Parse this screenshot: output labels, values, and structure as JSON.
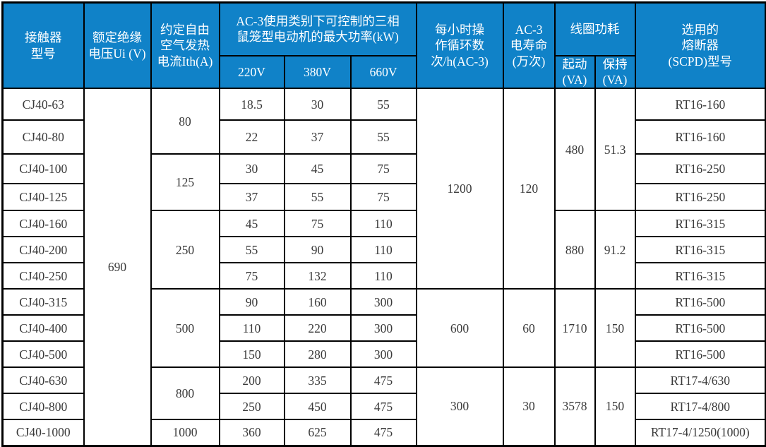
{
  "colors": {
    "header_bg": "#1082c8",
    "header_text": "#ffffff",
    "body_bg": "#ffffff",
    "body_text": "#3a3a3a",
    "border": "#000000"
  },
  "table": {
    "title_semantic": "CJ40 contactor specification table",
    "header_rows": [
      [
        {
          "t": "接触器\n型号",
          "rs": 2
        },
        {
          "t": "额定绝缘\n电压Ui (V)",
          "rs": 2
        },
        {
          "t": "约定自由\n空气发热\n电流Ith(A)",
          "rs": 2
        },
        {
          "t": "AC-3使用类别下可控制的三相\n鼠笼型电动机的最大功率(kW)",
          "cs": 3
        },
        {
          "t": "每小时操\n作循环数\n次/h(AC-3)",
          "rs": 2
        },
        {
          "t": "AC-3\n电寿命\n(万次)",
          "rs": 2
        },
        {
          "t": "线圈功耗",
          "cs": 2
        },
        {
          "t": "选用的\n熔断器\n(SCPD)型号",
          "rs": 2
        }
      ],
      [
        {
          "t": "220V"
        },
        {
          "t": "380V"
        },
        {
          "t": "660V"
        },
        {
          "t": "起动\n(VA)"
        },
        {
          "t": "保持\n(VA)"
        }
      ]
    ],
    "body_rows": [
      [
        {
          "t": "CJ40-63"
        },
        {
          "t": "690",
          "rs": 13
        },
        {
          "t": "80",
          "rs": 2
        },
        {
          "t": "18.5"
        },
        {
          "t": "30"
        },
        {
          "t": "55"
        },
        {
          "t": "1200",
          "rs": 7
        },
        {
          "t": "120",
          "rs": 7
        },
        {
          "t": "480",
          "rs": 4
        },
        {
          "t": "51.3",
          "rs": 4
        },
        {
          "t": "RT16-160"
        }
      ],
      [
        {
          "t": "CJ40-80"
        },
        {
          "t": "22"
        },
        {
          "t": "37"
        },
        {
          "t": "55"
        },
        {
          "t": "RT16-160"
        }
      ],
      [
        {
          "t": "CJ40-100"
        },
        {
          "t": "125",
          "rs": 2
        },
        {
          "t": "30"
        },
        {
          "t": "45"
        },
        {
          "t": "75"
        },
        {
          "t": "RT16-250"
        }
      ],
      [
        {
          "t": "CJ40-125"
        },
        {
          "t": "37"
        },
        {
          "t": "55"
        },
        {
          "t": "75"
        },
        {
          "t": "RT16-250"
        }
      ],
      [
        {
          "t": "CJ40-160"
        },
        {
          "t": "250",
          "rs": 3
        },
        {
          "t": "45"
        },
        {
          "t": "75"
        },
        {
          "t": "110"
        },
        {
          "t": "880",
          "rs": 3
        },
        {
          "t": "91.2",
          "rs": 3
        },
        {
          "t": "RT16-315"
        }
      ],
      [
        {
          "t": "CJ40-200"
        },
        {
          "t": "55"
        },
        {
          "t": "90"
        },
        {
          "t": "110"
        },
        {
          "t": "RT16-315"
        }
      ],
      [
        {
          "t": "CJ40-250"
        },
        {
          "t": "75"
        },
        {
          "t": "132"
        },
        {
          "t": "110"
        },
        {
          "t": "RT16-315"
        }
      ],
      [
        {
          "t": "CJ40-315"
        },
        {
          "t": "500",
          "rs": 3
        },
        {
          "t": "90"
        },
        {
          "t": "160"
        },
        {
          "t": "300"
        },
        {
          "t": "600",
          "rs": 3
        },
        {
          "t": "60",
          "rs": 3
        },
        {
          "t": "1710",
          "rs": 3
        },
        {
          "t": "150",
          "rs": 3
        },
        {
          "t": "RT16-500"
        }
      ],
      [
        {
          "t": "CJ40-400"
        },
        {
          "t": "110"
        },
        {
          "t": "220"
        },
        {
          "t": "300"
        },
        {
          "t": "RT16-500"
        }
      ],
      [
        {
          "t": "CJ40-500"
        },
        {
          "t": "150"
        },
        {
          "t": "280"
        },
        {
          "t": "300"
        },
        {
          "t": "RT16-500"
        }
      ],
      [
        {
          "t": "CJ40-630"
        },
        {
          "t": "800",
          "rs": 2
        },
        {
          "t": "200"
        },
        {
          "t": "335"
        },
        {
          "t": "475"
        },
        {
          "t": "300",
          "rs": 3
        },
        {
          "t": "30",
          "rs": 3
        },
        {
          "t": "3578",
          "rs": 3
        },
        {
          "t": "150",
          "rs": 3
        },
        {
          "t": "RT17-4/630"
        }
      ],
      [
        {
          "t": "CJ40-800"
        },
        {
          "t": "250"
        },
        {
          "t": "450"
        },
        {
          "t": "475"
        },
        {
          "t": "RT17-4/800"
        }
      ],
      [
        {
          "t": "CJ40-1000"
        },
        {
          "t": "1000"
        },
        {
          "t": "360"
        },
        {
          "t": "625"
        },
        {
          "t": "475"
        },
        {
          "t": "RT17-4/1250(1000)"
        }
      ]
    ]
  }
}
